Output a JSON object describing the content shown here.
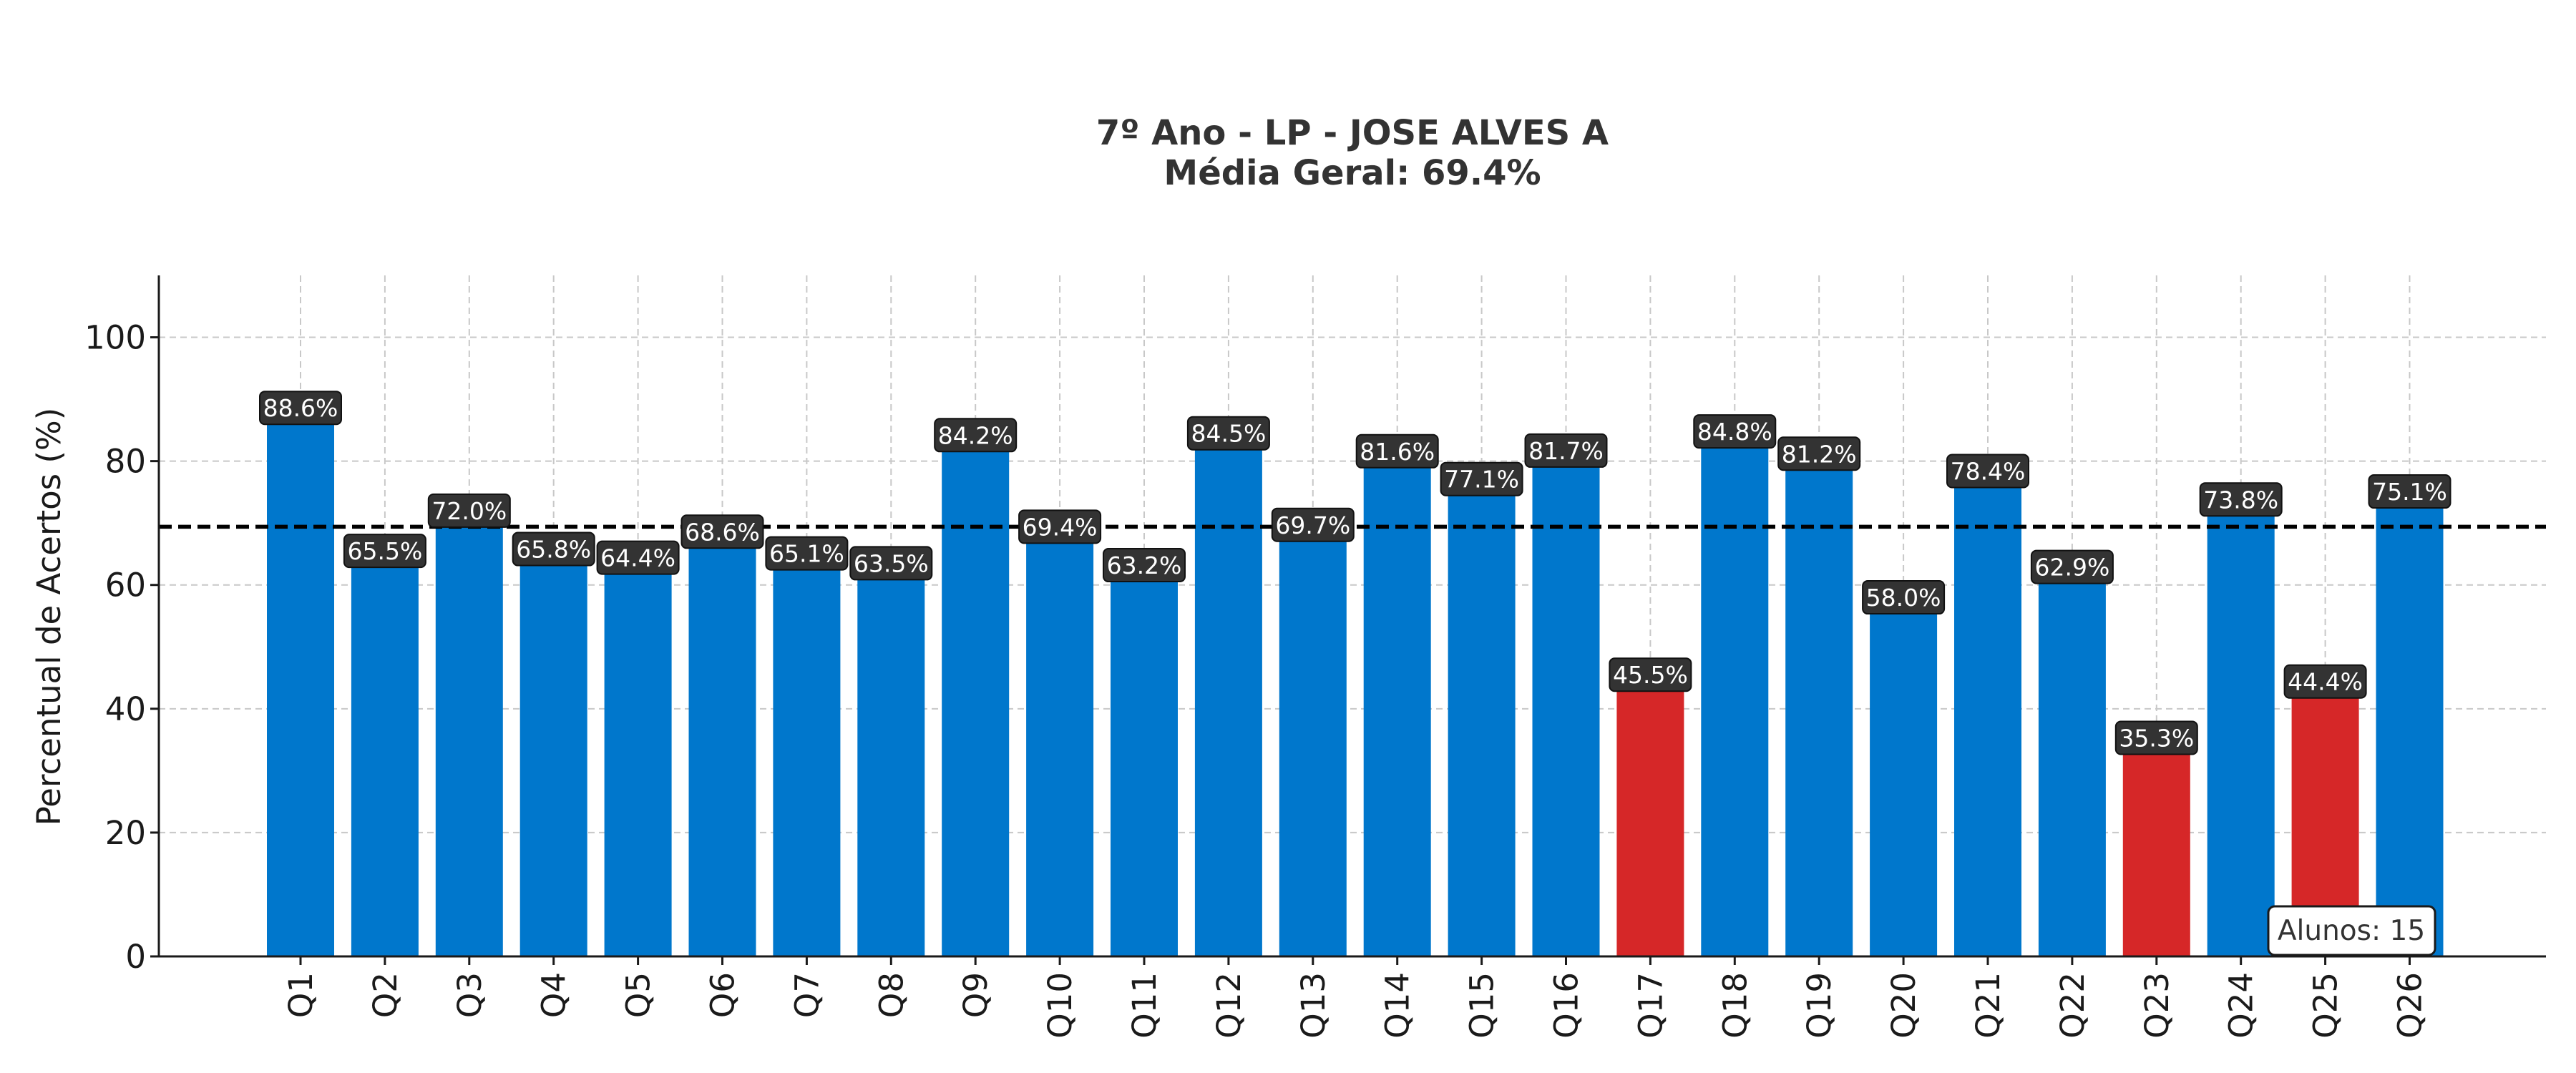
{
  "chart_data": {
    "type": "bar",
    "title": "7º Ano - LP - JOSE ALVES A",
    "subtitle": "Média Geral: 69.4%",
    "xlabel": "",
    "ylabel": "Percentual de Acertos (%)",
    "ylim": [
      0,
      110
    ],
    "yticks": [
      0,
      20,
      40,
      60,
      80,
      100
    ],
    "grid": true,
    "categories": [
      "Q1",
      "Q2",
      "Q3",
      "Q4",
      "Q5",
      "Q6",
      "Q7",
      "Q8",
      "Q9",
      "Q10",
      "Q11",
      "Q12",
      "Q13",
      "Q14",
      "Q15",
      "Q16",
      "Q17",
      "Q18",
      "Q19",
      "Q20",
      "Q21",
      "Q22",
      "Q23",
      "Q24",
      "Q25",
      "Q26"
    ],
    "values": [
      88.6,
      65.5,
      72.0,
      65.8,
      64.4,
      68.6,
      65.1,
      63.5,
      84.2,
      69.4,
      63.2,
      84.5,
      69.7,
      81.6,
      77.1,
      81.7,
      45.5,
      84.8,
      81.2,
      58.0,
      78.4,
      62.9,
      35.3,
      73.8,
      44.4,
      75.1
    ],
    "data_labels": [
      "88.6%",
      "65.5%",
      "72.0%",
      "65.8%",
      "64.4%",
      "68.6%",
      "65.1%",
      "63.5%",
      "84.2%",
      "69.4%",
      "63.2%",
      "84.5%",
      "69.7%",
      "81.6%",
      "77.1%",
      "81.7%",
      "45.5%",
      "84.8%",
      "81.2%",
      "58.0%",
      "78.4%",
      "62.9%",
      "35.3%",
      "73.8%",
      "44.4%",
      "75.1%"
    ],
    "bar_colors": [
      "#0077CC",
      "#0077CC",
      "#0077CC",
      "#0077CC",
      "#0077CC",
      "#0077CC",
      "#0077CC",
      "#0077CC",
      "#0077CC",
      "#0077CC",
      "#0077CC",
      "#0077CC",
      "#0077CC",
      "#0077CC",
      "#0077CC",
      "#0077CC",
      "#D62728",
      "#0077CC",
      "#0077CC",
      "#0077CC",
      "#0077CC",
      "#0077CC",
      "#D62728",
      "#0077CC",
      "#D62728",
      "#0077CC"
    ],
    "reference_line": {
      "value": 69.4,
      "style": "dashed",
      "color": "#000000"
    },
    "annotation": "Alunos: 15",
    "annotation_placement": "bottom-right"
  }
}
